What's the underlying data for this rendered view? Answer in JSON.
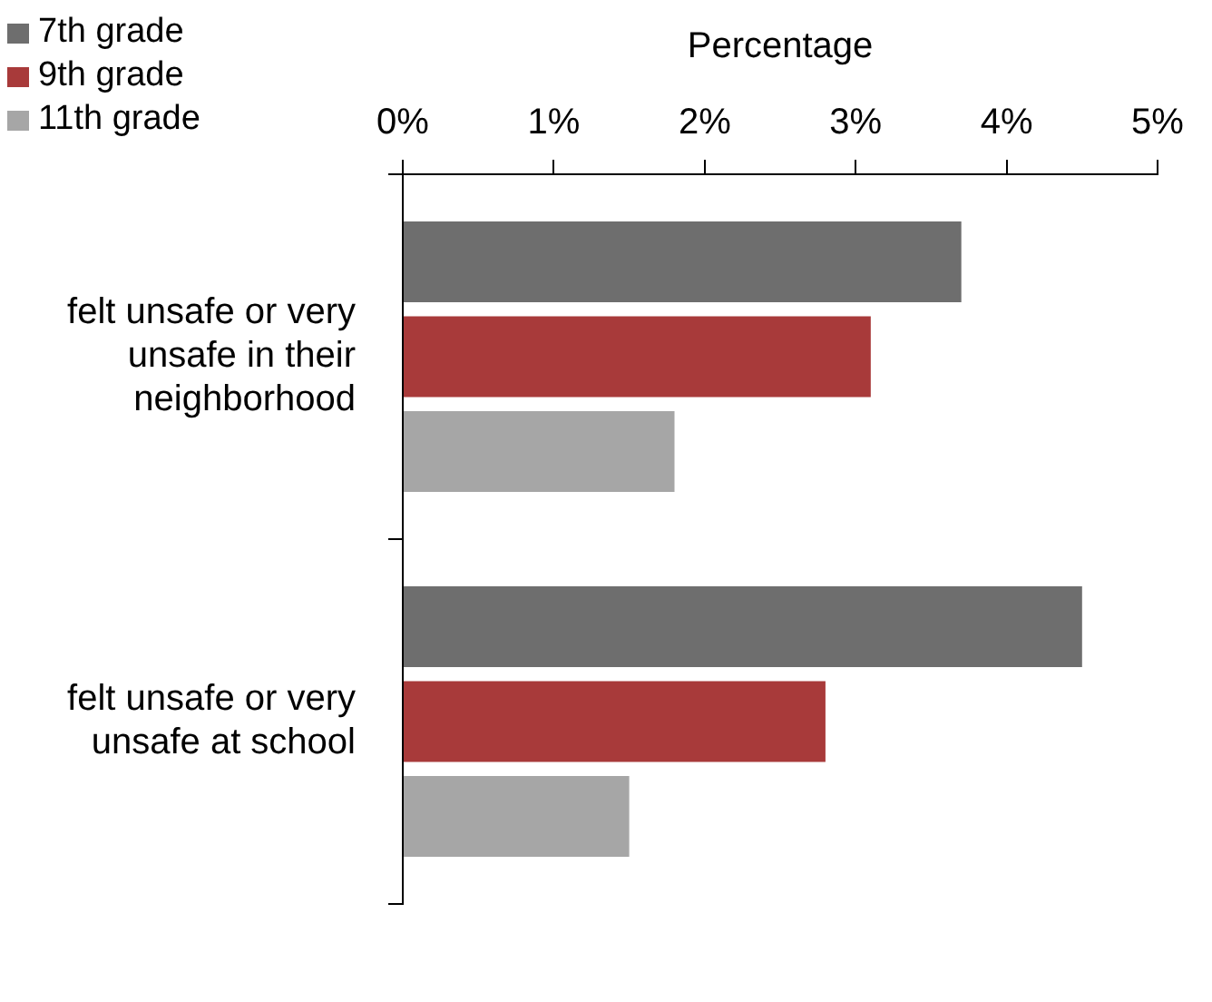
{
  "chart_data": {
    "type": "bar",
    "orientation": "horizontal",
    "xlabel": "Percentage",
    "categories": [
      "felt unsafe or very unsafe in their neighborhood",
      "felt unsafe or very unsafe at school"
    ],
    "series": [
      {
        "name": "7th grade",
        "color": "#6e6e6e",
        "values": [
          3.7,
          4.5
        ]
      },
      {
        "name": "9th grade",
        "color": "#a83a3a",
        "values": [
          3.1,
          2.8
        ]
      },
      {
        "name": "11th grade",
        "color": "#a6a6a6",
        "values": [
          1.8,
          1.5
        ]
      }
    ],
    "xlim": [
      0,
      5
    ],
    "xticks": [
      {
        "value": 0,
        "label": "0%"
      },
      {
        "value": 1,
        "label": "1%"
      },
      {
        "value": 2,
        "label": "2%"
      },
      {
        "value": 3,
        "label": "3%"
      },
      {
        "value": 4,
        "label": "4%"
      },
      {
        "value": 5,
        "label": "5%"
      }
    ],
    "grid": false,
    "legend": "top left"
  }
}
